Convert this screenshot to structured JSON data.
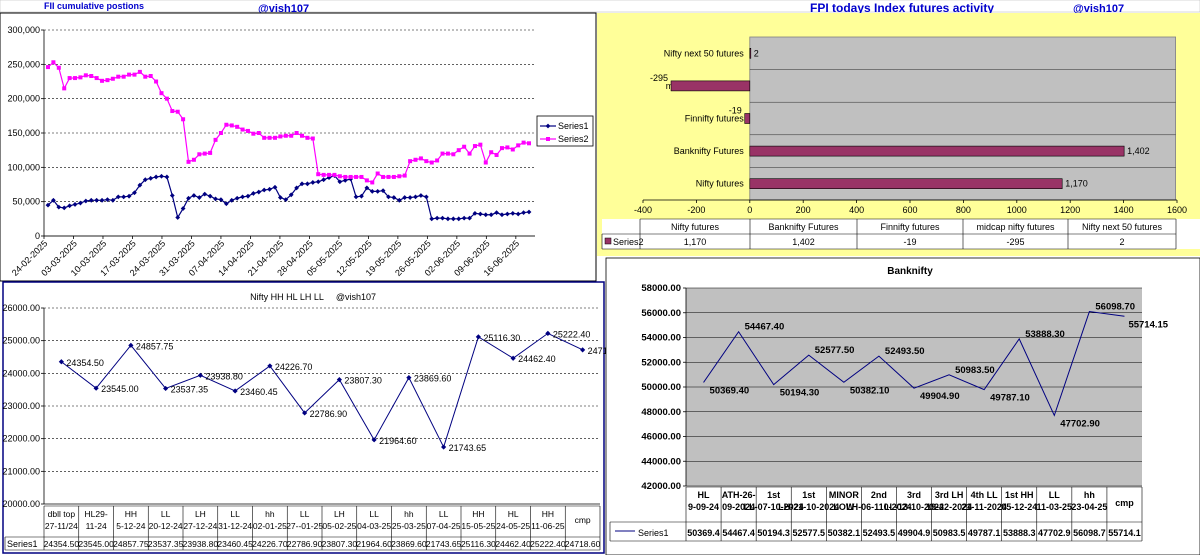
{
  "header": {
    "fii_title": "FII cumulative postions",
    "handle_left": "@vish107",
    "fpi_title": "FPI todays Index futures activity",
    "handle_right": "@vish107"
  },
  "colors": {
    "series1_line": "#000080",
    "series2_line": "#FF00FF",
    "panel_gray": "#C0C0C0",
    "yellow_bg": "#FFFF99",
    "bar_fill": "#993366"
  },
  "chart_data": [
    {
      "id": "fii_cumulative",
      "type": "line",
      "title": "FII cumulative postions",
      "ylim": [
        0,
        300000
      ],
      "yticks": [
        "0",
        "50,000",
        "100,000",
        "150,000",
        "200,000",
        "250,000",
        "300,000"
      ],
      "xtick_labels": [
        "24-02-2025",
        "03-03-2025",
        "10-03-2025",
        "17-03-2025",
        "24-03-2025",
        "31-03-2025",
        "07-04-2025",
        "14-04-2025",
        "21-04-2025",
        "28-04-2025",
        "05-05-2025",
        "12-05-2025",
        "19-05-2025",
        "26-05-2025",
        "02-06-2025",
        "09-06-2025",
        "16-06-2025"
      ],
      "legend": [
        "Series1",
        "Series2"
      ],
      "legend_position": "right",
      "series": [
        {
          "name": "Series1",
          "values": [
            45000,
            52000,
            42000,
            41000,
            44000,
            46000,
            48000,
            51000,
            52000,
            52000,
            52000,
            53000,
            52000,
            57000,
            57000,
            58000,
            63000,
            74000,
            82000,
            84000,
            86000,
            87000,
            86000,
            59000,
            27000,
            40000,
            55000,
            59000,
            56000,
            61000,
            58000,
            54000,
            53000,
            47000,
            52000,
            55000,
            57000,
            58000,
            62000,
            64000,
            67000,
            68000,
            71000,
            56000,
            53000,
            60000,
            70000,
            76000,
            76000,
            78000,
            79000,
            82000,
            85000,
            88000,
            79000,
            81000,
            83000,
            57000,
            58000,
            70000,
            65000,
            65000,
            66000,
            57000,
            56000,
            52000,
            56000,
            56000,
            57000,
            59000,
            57000,
            25000,
            26000,
            26000,
            25000,
            25000,
            25000,
            26000,
            26000,
            33000,
            32000,
            31000,
            31000,
            34000,
            31000,
            32000,
            33000,
            32000,
            34000,
            35000
          ]
        },
        {
          "name": "Series2",
          "values": [
            246000,
            253000,
            245000,
            215000,
            230000,
            230000,
            231000,
            234000,
            233000,
            230000,
            226000,
            227000,
            229000,
            232000,
            232000,
            235000,
            235000,
            239000,
            232000,
            233000,
            225000,
            208000,
            200000,
            182000,
            181000,
            170000,
            108000,
            111000,
            119000,
            120000,
            121000,
            140000,
            150000,
            162000,
            161000,
            159000,
            155000,
            153000,
            149000,
            150000,
            143000,
            143000,
            143000,
            145000,
            146000,
            146000,
            150000,
            146000,
            143000,
            142000,
            90000,
            89000,
            89000,
            89000,
            87000,
            86000,
            86000,
            86000,
            86000,
            81000,
            78000,
            91000,
            86000,
            86000,
            86000,
            87000,
            88000,
            109000,
            111000,
            113000,
            109000,
            107000,
            110000,
            120000,
            120000,
            119000,
            125000,
            130000,
            120000,
            131000,
            133000,
            107000,
            122000,
            118000,
            128000,
            129000,
            126000,
            132000,
            136000,
            135000
          ]
        }
      ]
    },
    {
      "id": "fpi_index_futures",
      "type": "bar",
      "orientation": "horizontal",
      "title": "FPI todays Index futures activity",
      "categories": [
        "Nifty futures",
        "Banknifty Futures",
        "Finnifty futures",
        "midcap nifty futures",
        "Nifty next 50 futures"
      ],
      "series": [
        {
          "name": "Series2",
          "values": [
            1170,
            1402,
            -19,
            -295,
            2
          ]
        }
      ],
      "value_labels": [
        "1,170",
        "1,402",
        "-19",
        "-295",
        "2"
      ],
      "xlim": [
        -400,
        1600
      ],
      "xticks": [
        "-400",
        "-200",
        "0",
        "200",
        "400",
        "600",
        "800",
        "1000",
        "1200",
        "1400",
        "1600"
      ],
      "table_series_label": "Series2"
    },
    {
      "id": "nifty_hh_hl",
      "type": "line",
      "title": "Nifty HH HL LH LL",
      "handle": "@vish107",
      "ylim": [
        20000,
        26000
      ],
      "yticks": [
        "20000.00",
        "21000.00",
        "22000.00",
        "23000.00",
        "24000.00",
        "25000.00",
        "26000.00"
      ],
      "categories": [
        "dbll top 27-11/24",
        "HL29-11-24",
        "HH 5-12-24",
        "LL 20-12-24",
        "LH 27-12-24",
        "LL 31-12-24",
        "hh 02-01-25",
        "LL 27--01-25",
        "LH 05-02-25",
        "LL 04-03-25",
        "hh 25-03-25",
        "LL 07-04-25",
        "HH 15-05-25",
        "HL 24-05-25",
        "HH 11-06-25",
        "cmp"
      ],
      "table_labels": [
        "24354.50",
        "23545.00",
        "24857.75",
        "23537.35",
        "23938.80",
        "23460.45",
        "24226.70",
        "22786.90",
        "23807.30",
        "21964.60",
        "23869.60",
        "21743.65",
        "25116.30",
        "24462.40",
        "25222.40",
        "24718.60"
      ],
      "series": [
        {
          "name": "Series1",
          "values": [
            24354.5,
            23545,
            24857.75,
            23537.35,
            23938.8,
            23460.45,
            24226.7,
            22786.9,
            23807.3,
            21964.6,
            23869.6,
            21743.65,
            25116.3,
            24462.4,
            25222.4,
            24718.6
          ]
        }
      ]
    },
    {
      "id": "banknifty",
      "type": "line",
      "title": "Banknifty",
      "ylim": [
        42000,
        58000
      ],
      "yticks": [
        "42000.00",
        "44000.00",
        "46000.00",
        "48000.00",
        "50000.00",
        "52000.00",
        "54000.00",
        "56000.00",
        "58000.00"
      ],
      "categories": [
        "HL 9-09-24",
        "ATH-26-09-2024",
        "1st LL-07-10-2024",
        "1st LH-21-10-2024",
        "MINOR LOW",
        "2nd LH-06-110-2024",
        "3rd LL-13-10-2024",
        "3rd LH 19-22-2024",
        "4th LL 21-11-2024",
        "1st HH 05-12-24",
        "LL 11-03-25",
        "hh 23-04-25",
        "cmp"
      ],
      "table_labels": [
        "50369.4",
        "54467.4",
        "50194.3",
        "52577.5",
        "50382.1",
        "52493.5",
        "49904.9",
        "50983.5",
        "49787.1",
        "53888.3",
        "47702.9",
        "56098.7",
        "55714.1"
      ],
      "point_labels": [
        "50369.40",
        "54467.40",
        "50194.30",
        "52577.50",
        "50382.10",
        "52493.50",
        "49904.90",
        "50983.50",
        "49787.10",
        "53888.30",
        "47702.90",
        "56098.70",
        "55714.15"
      ],
      "series": [
        {
          "name": "Series1",
          "values": [
            50369.4,
            54467.4,
            50194.3,
            52577.5,
            50382.1,
            52493.5,
            49904.9,
            50983.5,
            49787.1,
            53888.3,
            47702.9,
            56098.7,
            55714.15
          ]
        }
      ]
    }
  ]
}
